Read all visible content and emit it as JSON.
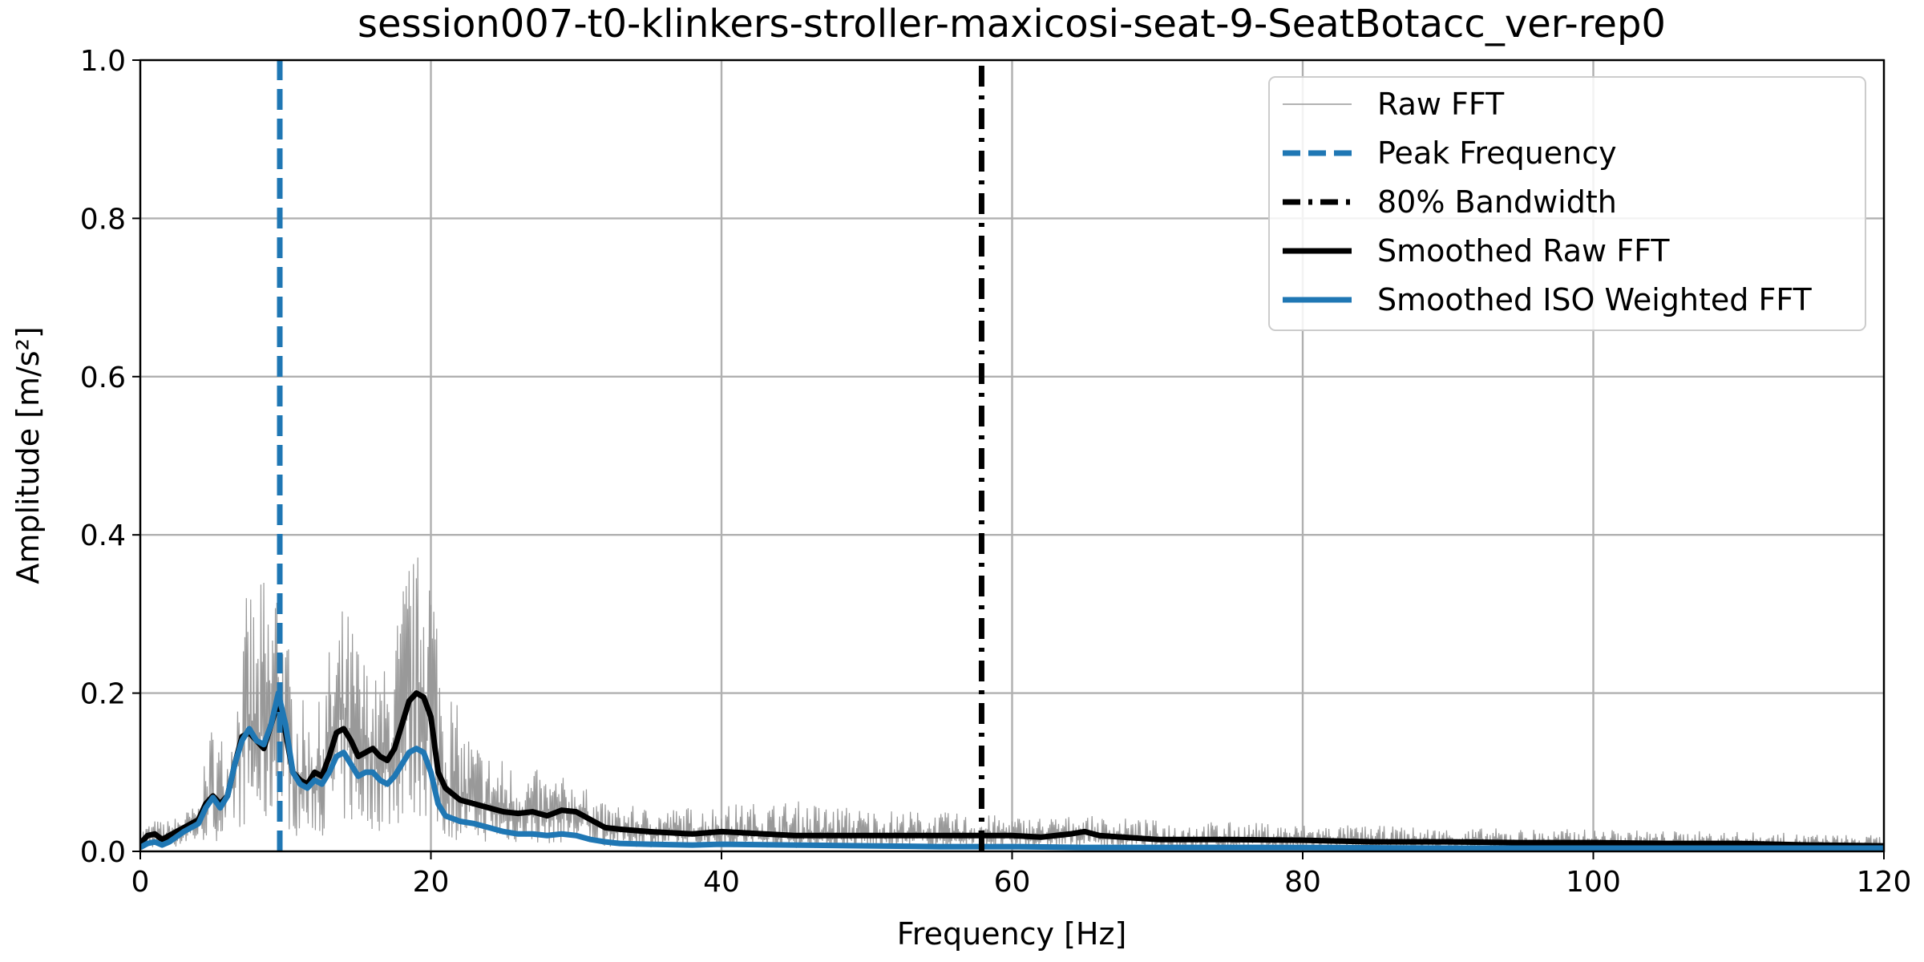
{
  "chart_data": {
    "type": "line",
    "title": "session007-t0-klinkers-stroller-maxicosi-seat-9-SeatBotacc_ver-rep0",
    "xlabel": "Frequency [Hz]",
    "ylabel": "Amplitude [m/s²]",
    "xlim": [
      0,
      120
    ],
    "ylim": [
      0,
      1.0
    ],
    "x_ticks": [
      "0",
      "20",
      "40",
      "60",
      "80",
      "100",
      "120"
    ],
    "y_ticks": [
      "0.0",
      "0.2",
      "0.4",
      "0.6",
      "0.8",
      "1.0"
    ],
    "grid": true,
    "legend_position": "top-right",
    "peak_frequency": 9.6,
    "bandwidth_80": 57.9,
    "colors": {
      "raw": "#999999",
      "peak": "#1f77b4",
      "bandwidth": "#000000",
      "smoothed_raw": "#000000",
      "smoothed_iso": "#1f77b4"
    },
    "series": [
      {
        "name": "Raw FFT",
        "envelope": {
          "x": [
            0,
            1,
            2,
            3,
            4,
            5,
            6,
            7,
            7.5,
            8,
            8.5,
            9,
            9.5,
            10,
            11,
            12,
            13,
            14,
            15,
            16,
            17,
            18,
            18.5,
            19,
            19.5,
            20,
            21,
            22,
            24,
            26,
            28,
            30,
            32,
            36,
            40,
            45,
            50,
            55,
            60,
            65,
            70,
            80,
            90,
            100,
            110,
            120
          ],
          "upper": [
            0.03,
            0.04,
            0.04,
            0.05,
            0.06,
            0.18,
            0.14,
            0.25,
            0.37,
            0.3,
            0.37,
            0.35,
            0.4,
            0.28,
            0.2,
            0.16,
            0.26,
            0.32,
            0.28,
            0.22,
            0.24,
            0.34,
            0.4,
            0.36,
            0.48,
            0.42,
            0.25,
            0.17,
            0.13,
            0.11,
            0.1,
            0.09,
            0.06,
            0.055,
            0.06,
            0.065,
            0.055,
            0.05,
            0.045,
            0.045,
            0.04,
            0.035,
            0.03,
            0.028,
            0.025,
            0.02
          ]
        }
      },
      {
        "name": "Peak Frequency",
        "x": [
          9.6,
          9.6
        ],
        "y": [
          0,
          1.0
        ]
      },
      {
        "name": "80% Bandwidth",
        "x": [
          57.9,
          57.9
        ],
        "y": [
          0,
          1.0
        ]
      },
      {
        "name": "Smoothed Raw FFT",
        "x": [
          0,
          0.5,
          1,
          1.5,
          2,
          3,
          4,
          4.5,
          5,
          5.5,
          6,
          6.5,
          7,
          7.5,
          8,
          8.5,
          9,
          9.5,
          10,
          10.5,
          11,
          11.5,
          12,
          12.5,
          13,
          13.5,
          14,
          14.5,
          15,
          15.5,
          16,
          16.5,
          17,
          17.5,
          18,
          18.5,
          19,
          19.5,
          20,
          20.5,
          21,
          22,
          23,
          24,
          25,
          26,
          27,
          28,
          29,
          30,
          31,
          32,
          33,
          35,
          38,
          40,
          45,
          50,
          55,
          60,
          62,
          64,
          65,
          66,
          70,
          75,
          80,
          85,
          90,
          95,
          100,
          105,
          110,
          115,
          120
        ],
        "y": [
          0.01,
          0.02,
          0.022,
          0.015,
          0.02,
          0.03,
          0.04,
          0.06,
          0.07,
          0.06,
          0.07,
          0.11,
          0.145,
          0.15,
          0.14,
          0.13,
          0.16,
          0.19,
          0.15,
          0.1,
          0.09,
          0.085,
          0.1,
          0.095,
          0.12,
          0.15,
          0.155,
          0.14,
          0.12,
          0.125,
          0.13,
          0.12,
          0.115,
          0.13,
          0.16,
          0.19,
          0.2,
          0.195,
          0.17,
          0.1,
          0.08,
          0.065,
          0.06,
          0.055,
          0.05,
          0.048,
          0.05,
          0.045,
          0.052,
          0.05,
          0.04,
          0.03,
          0.028,
          0.025,
          0.022,
          0.025,
          0.02,
          0.02,
          0.02,
          0.02,
          0.018,
          0.022,
          0.025,
          0.02,
          0.015,
          0.015,
          0.014,
          0.012,
          0.012,
          0.011,
          0.011,
          0.01,
          0.01,
          0.008,
          0.007
        ]
      },
      {
        "name": "Smoothed ISO Weighted FFT",
        "x": [
          0,
          0.5,
          1,
          1.5,
          2,
          3,
          4,
          4.5,
          5,
          5.5,
          6,
          6.5,
          7,
          7.5,
          8,
          8.5,
          9,
          9.5,
          10,
          10.5,
          11,
          11.5,
          12,
          12.5,
          13,
          13.5,
          14,
          14.5,
          15,
          15.5,
          16,
          16.5,
          17,
          17.5,
          18,
          18.5,
          19,
          19.5,
          20,
          20.5,
          21,
          22,
          23,
          24,
          25,
          26,
          27,
          28,
          29,
          30,
          31,
          32,
          33,
          35,
          38,
          40,
          45,
          50,
          55,
          60,
          65,
          70,
          80,
          90,
          100,
          110,
          120
        ],
        "y": [
          0.005,
          0.01,
          0.012,
          0.008,
          0.012,
          0.025,
          0.035,
          0.055,
          0.068,
          0.055,
          0.07,
          0.11,
          0.14,
          0.155,
          0.14,
          0.135,
          0.16,
          0.2,
          0.16,
          0.1,
          0.085,
          0.08,
          0.09,
          0.085,
          0.1,
          0.12,
          0.125,
          0.11,
          0.095,
          0.1,
          0.1,
          0.09,
          0.085,
          0.095,
          0.11,
          0.125,
          0.13,
          0.125,
          0.1,
          0.06,
          0.045,
          0.038,
          0.035,
          0.03,
          0.025,
          0.022,
          0.022,
          0.02,
          0.022,
          0.02,
          0.015,
          0.012,
          0.01,
          0.009,
          0.008,
          0.009,
          0.008,
          0.007,
          0.006,
          0.006,
          0.005,
          0.005,
          0.005,
          0.004,
          0.004,
          0.004,
          0.004
        ]
      }
    ]
  }
}
